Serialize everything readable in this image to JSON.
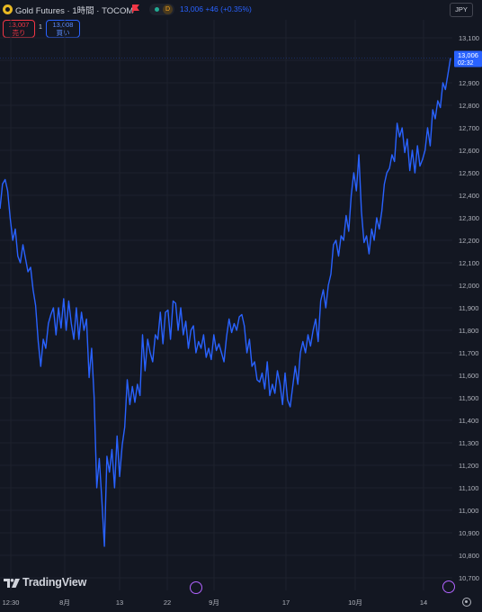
{
  "header": {
    "title": "Gold Futures · 1時間 · TOCOM",
    "price_change": "13,006 +46 (+0.35%)",
    "interval_badge": "D",
    "currency": "JPY",
    "sell_price": "13,007",
    "sell_label": "売り",
    "spread": "1",
    "buy_price": "13,008",
    "buy_label": "買い"
  },
  "branding": {
    "logo_text": "TradingView"
  },
  "last_price_label": {
    "price": "13,006",
    "countdown": "02:32"
  },
  "colors": {
    "background": "#131722",
    "line": "#2962ff",
    "grid": "#1e222d",
    "text": "#b2b5be"
  },
  "icons": [
    "gold-symbol-icon",
    "flag-icon",
    "replay-icon",
    "flash-icon",
    "gear-icon"
  ],
  "chart_data": {
    "type": "line",
    "title": "",
    "xlabel": "",
    "ylabel": "",
    "ylim": [
      10650,
      13170
    ],
    "y_ticks": [
      13100,
      13000,
      12900,
      12800,
      12700,
      12600,
      12500,
      12400,
      12300,
      12200,
      12100,
      12000,
      11900,
      11800,
      11700,
      11600,
      11500,
      11400,
      11300,
      11200,
      11100,
      11000,
      10900,
      10800,
      10700
    ],
    "y_tick_labels": [
      "13,100",
      "13,000",
      "12,900",
      "12,800",
      "12,700",
      "12,600",
      "12,500",
      "12,400",
      "12,300",
      "12,200",
      "12,100",
      "12,000",
      "11,900",
      "11,800",
      "11,700",
      "11,600",
      "11,500",
      "11,400",
      "11,300",
      "11,200",
      "11,100",
      "11,000",
      "10,900",
      "10,800",
      "10,700"
    ],
    "x_ticks": [
      {
        "label": "12:30",
        "pos": 12
      },
      {
        "label": "8月",
        "pos": 72
      },
      {
        "label": "13",
        "pos": 133
      },
      {
        "label": "22",
        "pos": 186
      },
      {
        "label": "9月",
        "pos": 238
      },
      {
        "label": "17",
        "pos": 318
      },
      {
        "label": "10月",
        "pos": 395
      },
      {
        "label": "14",
        "pos": 471
      }
    ],
    "grid": true,
    "series": [
      {
        "name": "",
        "values": [
          12340,
          12450,
          12470,
          12420,
          12300,
          12200,
          12250,
          12130,
          12100,
          12180,
          12120,
          12060,
          12080,
          11980,
          11910,
          11750,
          11640,
          11760,
          11720,
          11830,
          11870,
          11900,
          11780,
          11900,
          11810,
          11940,
          11800,
          11930,
          11830,
          11760,
          11900,
          11760,
          11880,
          11800,
          11850,
          11590,
          11720,
          11500,
          11100,
          11230,
          11050,
          10840,
          11240,
          11170,
          11270,
          11100,
          11330,
          11150,
          11290,
          11370,
          11580,
          11470,
          11550,
          11480,
          11560,
          11510,
          11780,
          11620,
          11760,
          11700,
          11660,
          11780,
          11760,
          11880,
          11740,
          11880,
          11890,
          11760,
          11930,
          11920,
          11800,
          11900,
          11780,
          11840,
          11720,
          11800,
          11820,
          11700,
          11750,
          11720,
          11780,
          11680,
          11720,
          11670,
          11780,
          11710,
          11740,
          11700,
          11660,
          11770,
          11850,
          11790,
          11830,
          11800,
          11860,
          11870,
          11820,
          11700,
          11760,
          11640,
          11660,
          11580,
          11570,
          11610,
          11540,
          11660,
          11510,
          11560,
          11520,
          11620,
          11560,
          11470,
          11610,
          11490,
          11460,
          11550,
          11640,
          11560,
          11700,
          11750,
          11700,
          11780,
          11730,
          11800,
          11850,
          11750,
          11930,
          11980,
          11900,
          12000,
          12050,
          12180,
          12200,
          12130,
          12220,
          12200,
          12310,
          12240,
          12400,
          12500,
          12420,
          12580,
          12330,
          12190,
          12220,
          12140,
          12250,
          12200,
          12300,
          12250,
          12330,
          12450,
          12500,
          12520,
          12580,
          12550,
          12720,
          12660,
          12700,
          12590,
          12650,
          12510,
          12600,
          12500,
          12620,
          12530,
          12560,
          12600,
          12700,
          12620,
          12780,
          12740,
          12820,
          12790,
          12900,
          12870,
          12940,
          13010
        ]
      }
    ]
  }
}
